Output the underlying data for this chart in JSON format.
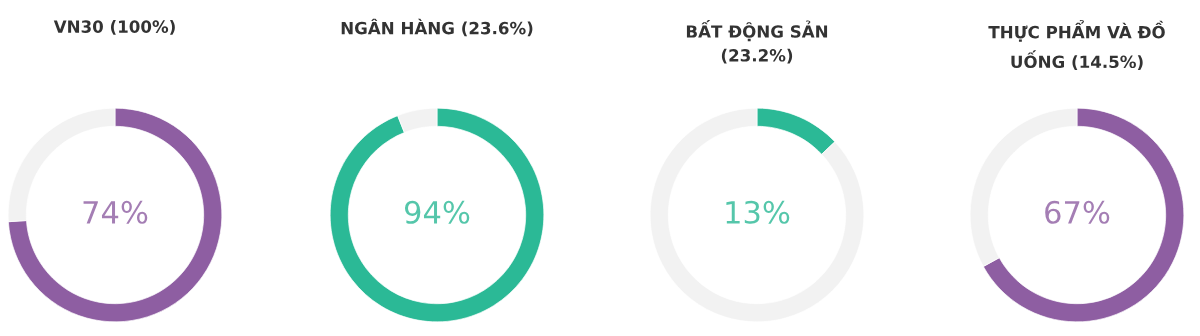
{
  "chart_data": [
    {
      "type": "donut",
      "title": "VN30 (100%)",
      "categories": [
        null,
        null
      ],
      "values": [
        74,
        26
      ],
      "colors": [
        "#8e5ea2",
        "#f2f2f2"
      ],
      "value_labels": [
        "74%",
        null
      ]
    },
    {
      "type": "donut",
      "title": "NGÂN HÀNG (23.6%)",
      "categories": [
        null,
        null
      ],
      "values": [
        94,
        6
      ],
      "colors": [
        "#2bb996",
        "#f2f2f2"
      ],
      "value_labels": [
        "94%",
        null
      ]
    },
    {
      "type": "donut",
      "title": "BẤT ĐỘNG SẢN (23.2%)",
      "categories": [
        null,
        null
      ],
      "values": [
        13,
        87
      ],
      "colors": [
        "#2bb996",
        "#f2f2f2"
      ],
      "value_labels": [
        "13%",
        null
      ]
    },
    {
      "type": "donut",
      "title": "THỰC PHẨM VÀ ĐỒ UỐNG (14.5%)",
      "categories": [
        null,
        null
      ],
      "values": [
        67,
        33
      ],
      "colors": [
        "#8e5ea2",
        "#f2f2f2"
      ],
      "value_labels": [
        "67%",
        null
      ]
    }
  ]
}
